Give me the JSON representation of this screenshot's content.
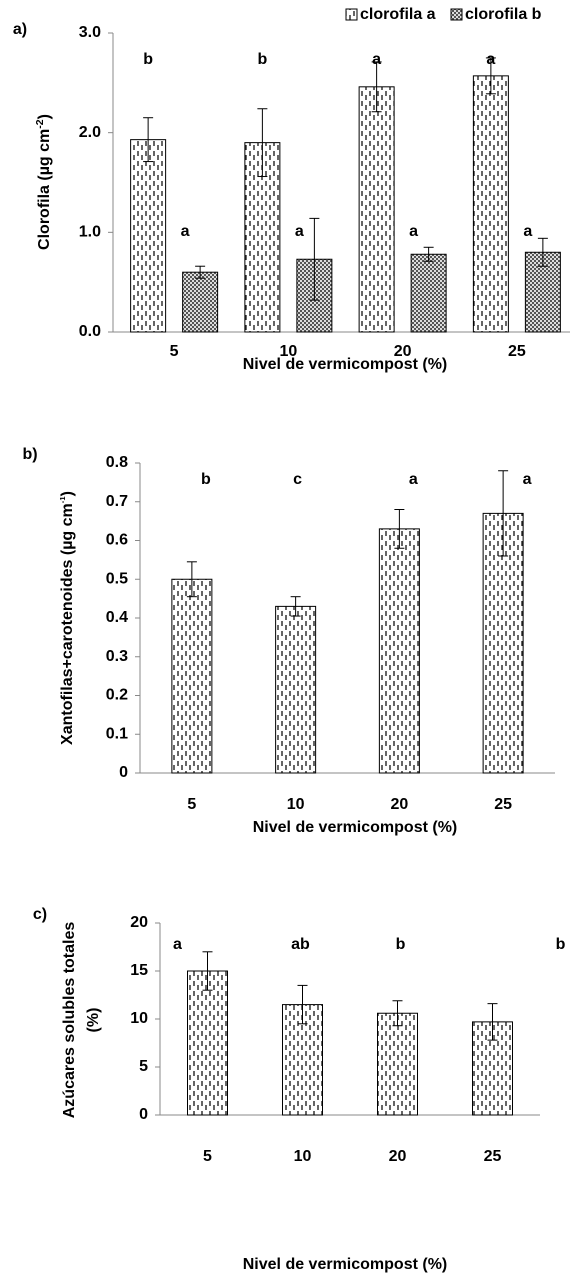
{
  "chart_data": [
    {
      "type": "bar",
      "title": "a)",
      "categories": [
        "5",
        "10",
        "20",
        "25"
      ],
      "xlabel": "Nivel de vermicompost (%)",
      "ylabel_parts": [
        "Clorofila   (µg cm",
        "-2",
        ")"
      ],
      "ylim": [
        0,
        3
      ],
      "yticks": [
        {
          "value": 0,
          "label": "0.0"
        },
        {
          "value": 1,
          "label": "1.0"
        },
        {
          "value": 2,
          "label": "2.0"
        },
        {
          "value": 3,
          "label": "3.0"
        }
      ],
      "legend": "top-right",
      "series": [
        {
          "name": "clorofila a",
          "values": [
            1.93,
            1.9,
            2.46,
            2.57
          ],
          "errors": [
            0.22,
            0.34,
            0.25,
            0.18
          ],
          "letters": [
            "b",
            "b",
            "a",
            "a"
          ]
        },
        {
          "name": "clorofila b",
          "values": [
            0.6,
            0.73,
            0.78,
            0.8
          ],
          "errors": [
            0.06,
            0.41,
            0.07,
            0.14
          ],
          "letters": [
            "a",
            "a",
            "a",
            "a"
          ]
        }
      ]
    },
    {
      "type": "bar",
      "title": "b)",
      "categories": [
        "5",
        "10",
        "20",
        "25"
      ],
      "xlabel": "Nivel de vermicompost (%)",
      "ylabel_parts": [
        "Xantofilas+carotenoides  (µg cm",
        "-1",
        ")"
      ],
      "ylim": [
        0,
        0.8
      ],
      "yticks": [
        0,
        0.1,
        0.2,
        0.3,
        0.4,
        0.5,
        0.6,
        0.7,
        0.8
      ],
      "series": [
        {
          "values": [
            0.5,
            0.43,
            0.63,
            0.67
          ],
          "errors": [
            0.045,
            0.025,
            0.05,
            0.11
          ],
          "letters": [
            "b",
            "c",
            "a",
            "a"
          ]
        }
      ]
    },
    {
      "type": "bar",
      "title": "c)",
      "categories": [
        "5",
        "10",
        "20",
        "25"
      ],
      "xlabel": "Nivel de vermicompost (%)",
      "ylabel_lines": [
        "Azúcares solubles totales",
        "(%)"
      ],
      "ylim": [
        0,
        20
      ],
      "yticks": [
        0,
        5,
        10,
        15,
        20
      ],
      "series": [
        {
          "values": [
            15.0,
            11.5,
            10.6,
            9.7
          ],
          "errors": [
            2.0,
            2.0,
            1.3,
            1.9
          ],
          "letters": [
            "a",
            "ab",
            "b",
            "b"
          ]
        }
      ]
    }
  ]
}
